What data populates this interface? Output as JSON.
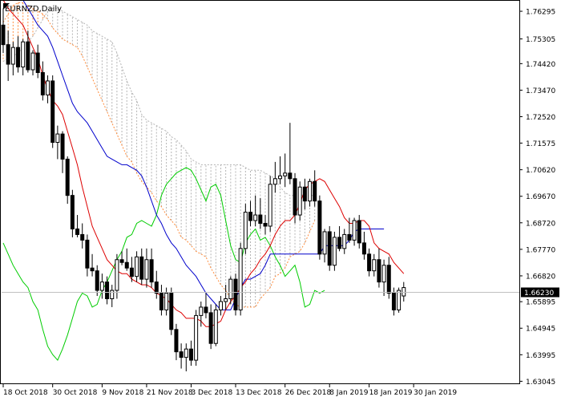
{
  "chart_data": {
    "type": "candlestick",
    "symbol": "EURNZD",
    "timeframe": "Daily",
    "title": "EURNZD,Daily",
    "current_price": "1.66230",
    "ylim": [
      1.6297,
      1.7667
    ],
    "y_ticks": [
      "1.76295",
      "1.75305",
      "1.74420",
      "1.73470",
      "1.72520",
      "1.71575",
      "1.70620",
      "1.69670",
      "1.68720",
      "1.67770",
      "1.66820",
      "1.65895",
      "1.64945",
      "1.63995",
      "1.63045"
    ],
    "x_ticks": [
      "18 Oct 2018",
      "30 Oct 2018",
      "9 Nov 2018",
      "21 Nov 2018",
      "3 Dec 2018",
      "13 Dec 2018",
      "26 Dec 2018",
      "8 Jan 2019",
      "18 Jan 2019",
      "30 Jan 2019"
    ],
    "colors": {
      "candle": "#000000",
      "tenkan": "#dd0000",
      "kijun": "#0000cc",
      "chikou": "#00cc00",
      "senkou_a": "#ff8c3c",
      "senkou_b": "#b4b4b4",
      "price_tag": "#000000",
      "grid_line": "#c0c0c0"
    },
    "candles": [
      [
        1.758,
        1.764,
        1.748,
        1.751
      ],
      [
        1.751,
        1.756,
        1.738,
        1.744
      ],
      [
        1.744,
        1.752,
        1.74,
        1.75
      ],
      [
        1.75,
        1.754,
        1.741,
        1.743
      ],
      [
        1.743,
        1.753,
        1.74,
        1.752
      ],
      [
        1.752,
        1.756,
        1.741,
        1.742
      ],
      [
        1.742,
        1.749,
        1.74,
        1.748
      ],
      [
        1.748,
        1.751,
        1.739,
        1.741
      ],
      [
        1.741,
        1.745,
        1.731,
        1.733
      ],
      [
        1.733,
        1.74,
        1.73,
        1.738
      ],
      [
        1.738,
        1.74,
        1.714,
        1.716
      ],
      [
        1.716,
        1.722,
        1.71,
        1.719
      ],
      [
        1.719,
        1.72,
        1.705,
        1.71
      ],
      [
        1.71,
        1.711,
        1.694,
        1.697
      ],
      [
        1.697,
        1.699,
        1.682,
        1.685
      ],
      [
        1.685,
        1.69,
        1.682,
        1.683
      ],
      [
        1.683,
        1.687,
        1.678,
        1.681
      ],
      [
        1.681,
        1.683,
        1.668,
        1.671
      ],
      [
        1.671,
        1.676,
        1.668,
        1.67
      ],
      [
        1.67,
        1.672,
        1.661,
        1.663
      ],
      [
        1.663,
        1.669,
        1.66,
        1.666
      ],
      [
        1.666,
        1.668,
        1.658,
        1.66
      ],
      [
        1.66,
        1.665,
        1.657,
        1.663
      ],
      [
        1.663,
        1.676,
        1.66,
        1.674
      ],
      [
        1.674,
        1.677,
        1.672,
        1.673
      ],
      [
        1.673,
        1.678,
        1.67,
        1.671
      ],
      [
        1.671,
        1.675,
        1.666,
        1.668
      ],
      [
        1.668,
        1.677,
        1.666,
        1.675
      ],
      [
        1.675,
        1.678,
        1.665,
        1.667
      ],
      [
        1.667,
        1.678,
        1.664,
        1.674
      ],
      [
        1.674,
        1.678,
        1.664,
        1.666
      ],
      [
        1.666,
        1.67,
        1.66,
        1.662
      ],
      [
        1.662,
        1.665,
        1.654,
        1.656
      ],
      [
        1.656,
        1.664,
        1.654,
        1.662
      ],
      [
        1.662,
        1.664,
        1.647,
        1.649
      ],
      [
        1.649,
        1.651,
        1.638,
        1.641
      ],
      [
        1.641,
        1.644,
        1.635,
        1.639
      ],
      [
        1.639,
        1.644,
        1.634,
        1.642
      ],
      [
        1.642,
        1.645,
        1.636,
        1.638
      ],
      [
        1.638,
        1.656,
        1.636,
        1.654
      ],
      [
        1.654,
        1.659,
        1.65,
        1.657
      ],
      [
        1.657,
        1.662,
        1.653,
        1.655
      ],
      [
        1.655,
        1.658,
        1.642,
        1.644
      ],
      [
        1.644,
        1.658,
        1.643,
        1.656
      ],
      [
        1.656,
        1.661,
        1.654,
        1.659
      ],
      [
        1.659,
        1.665,
        1.656,
        1.66
      ],
      [
        1.66,
        1.668,
        1.658,
        1.667
      ],
      [
        1.667,
        1.669,
        1.654,
        1.656
      ],
      [
        1.656,
        1.68,
        1.654,
        1.678
      ],
      [
        1.678,
        1.694,
        1.676,
        1.691
      ],
      [
        1.691,
        1.695,
        1.686,
        1.688
      ],
      [
        1.688,
        1.697,
        1.686,
        1.69
      ],
      [
        1.69,
        1.696,
        1.685,
        1.687
      ],
      [
        1.687,
        1.69,
        1.683,
        1.686
      ],
      [
        1.686,
        1.704,
        1.684,
        1.701
      ],
      [
        1.701,
        1.709,
        1.698,
        1.703
      ],
      [
        1.703,
        1.711,
        1.701,
        1.704
      ],
      [
        1.704,
        1.712,
        1.7,
        1.705
      ],
      [
        1.705,
        1.723,
        1.701,
        1.703
      ],
      [
        1.703,
        1.705,
        1.687,
        1.69
      ],
      [
        1.69,
        1.702,
        1.688,
        1.7
      ],
      [
        1.7,
        1.703,
        1.692,
        1.695
      ],
      [
        1.695,
        1.703,
        1.693,
        1.702
      ],
      [
        1.702,
        1.706,
        1.693,
        1.695
      ],
      [
        1.695,
        1.697,
        1.674,
        1.676
      ],
      [
        1.676,
        1.685,
        1.673,
        1.684
      ],
      [
        1.684,
        1.686,
        1.67,
        1.672
      ],
      [
        1.672,
        1.684,
        1.67,
        1.682
      ],
      [
        1.682,
        1.686,
        1.677,
        1.678
      ],
      [
        1.678,
        1.685,
        1.676,
        1.683
      ],
      [
        1.683,
        1.689,
        1.68,
        1.681
      ],
      [
        1.681,
        1.689,
        1.679,
        1.688
      ],
      [
        1.688,
        1.69,
        1.678,
        1.68
      ],
      [
        1.68,
        1.684,
        1.674,
        1.676
      ],
      [
        1.676,
        1.678,
        1.668,
        1.67
      ],
      [
        1.67,
        1.676,
        1.668,
        1.674
      ],
      [
        1.674,
        1.678,
        1.664,
        1.666
      ],
      [
        1.666,
        1.674,
        1.661,
        1.672
      ],
      [
        1.672,
        1.675,
        1.66,
        1.662
      ],
      [
        1.662,
        1.664,
        1.654,
        1.656
      ],
      [
        1.656,
        1.664,
        1.655,
        1.663
      ],
      [
        1.661,
        1.666,
        1.659,
        1.664
      ]
    ],
    "tenkan": [
      1.767,
      1.764,
      1.762,
      1.76,
      1.758,
      1.754,
      1.75,
      1.746,
      1.74,
      1.735,
      1.731,
      1.729,
      1.726,
      1.72,
      1.714,
      1.708,
      1.7,
      1.693,
      1.686,
      1.682,
      1.678,
      1.674,
      1.672,
      1.67,
      1.669,
      1.669,
      1.667,
      1.666,
      1.665,
      1.665,
      1.664,
      1.662,
      1.661,
      1.66,
      1.658,
      1.656,
      1.655,
      1.653,
      1.653,
      1.653,
      1.652,
      1.65,
      1.65,
      1.651,
      1.652,
      1.656,
      1.659,
      1.661,
      1.664,
      1.666,
      1.669,
      1.671,
      1.674,
      1.676,
      1.679,
      1.683,
      1.686,
      1.688,
      1.688,
      1.69,
      1.694,
      1.699,
      1.701,
      1.702,
      1.703,
      1.702,
      1.699,
      1.696,
      1.693,
      1.689,
      1.687,
      1.687,
      1.688,
      1.688,
      1.686,
      1.68,
      1.678,
      1.677,
      1.676,
      1.673,
      1.671,
      1.669
    ],
    "kijun": [
      1.767,
      1.767,
      1.767,
      1.767,
      1.767,
      1.764,
      1.761,
      1.758,
      1.756,
      1.754,
      1.75,
      1.745,
      1.74,
      1.735,
      1.73,
      1.727,
      1.725,
      1.723,
      1.72,
      1.717,
      1.714,
      1.711,
      1.71,
      1.709,
      1.708,
      1.708,
      1.707,
      1.706,
      1.704,
      1.7,
      1.695,
      1.69,
      1.687,
      1.683,
      1.68,
      1.678,
      1.675,
      1.672,
      1.67,
      1.668,
      1.665,
      1.662,
      1.66,
      1.658,
      1.656,
      1.656,
      1.656,
      1.66,
      1.664,
      1.667,
      1.667,
      1.668,
      1.669,
      1.672,
      1.676,
      1.676,
      1.676,
      1.676,
      1.676,
      1.676,
      1.676,
      1.676,
      1.676,
      1.676,
      1.676,
      1.679,
      1.679,
      1.679,
      1.679,
      1.679,
      1.681,
      1.684,
      1.685,
      1.685,
      1.685,
      1.685,
      1.685,
      1.685
    ],
    "chikou": [
      1.68,
      1.676,
      1.672,
      1.669,
      1.666,
      1.664,
      1.659,
      1.656,
      1.649,
      1.643,
      1.64,
      1.638,
      1.642,
      1.647,
      1.653,
      1.659,
      1.662,
      1.661,
      1.657,
      1.658,
      1.663,
      1.666,
      1.67,
      1.674,
      1.677,
      1.682,
      1.683,
      1.687,
      1.688,
      1.687,
      1.686,
      1.69,
      1.697,
      1.701,
      1.703,
      1.705,
      1.706,
      1.707,
      1.706,
      1.703,
      1.699,
      1.695,
      1.7,
      1.701,
      1.697,
      1.688,
      1.679,
      1.674,
      1.673,
      1.68,
      1.683,
      1.685,
      1.681,
      1.682,
      1.679,
      1.675,
      1.672,
      1.668,
      1.67,
      1.672,
      1.666,
      1.657,
      1.658,
      1.663,
      1.662,
      1.663
    ],
    "senkou_a": [
      1.759,
      1.762,
      1.765,
      1.766,
      1.766,
      1.765,
      1.764,
      1.763,
      1.762,
      1.76,
      1.757,
      1.755,
      1.753,
      1.752,
      1.751,
      1.75,
      1.747,
      1.743,
      1.739,
      1.735,
      1.731,
      1.727,
      1.723,
      1.719,
      1.715,
      1.711,
      1.709,
      1.705,
      1.702,
      1.7,
      1.698,
      1.695,
      1.693,
      1.69,
      1.688,
      1.686,
      1.682,
      1.681,
      1.679,
      1.677,
      1.676,
      1.675,
      1.671,
      1.668,
      1.665,
      1.663,
      1.66,
      1.658,
      1.657,
      1.657,
      1.657,
      1.657,
      1.66,
      1.662,
      1.664,
      1.668,
      1.669,
      1.671,
      1.675,
      1.676,
      1.677,
      1.68,
      1.684,
      1.688
    ],
    "senkou_b": [
      1.745,
      1.746,
      1.747,
      1.748,
      1.75,
      1.752,
      1.754,
      1.757,
      1.76,
      1.763,
      1.764,
      1.764,
      1.763,
      1.762,
      1.761,
      1.76,
      1.759,
      1.758,
      1.756,
      1.755,
      1.754,
      1.753,
      1.752,
      1.748,
      1.743,
      1.738,
      1.734,
      1.731,
      1.726,
      1.724,
      1.723,
      1.722,
      1.721,
      1.72,
      1.718,
      1.717,
      1.715,
      1.713,
      1.71,
      1.709,
      1.708,
      1.708,
      1.708,
      1.708,
      1.708,
      1.708,
      1.708,
      1.708,
      1.708,
      1.707,
      1.706,
      1.706,
      1.706,
      1.705,
      1.704,
      1.703,
      1.7,
      1.698,
      1.697,
      1.697,
      1.697,
      1.697,
      1.697,
      1.697
    ]
  }
}
